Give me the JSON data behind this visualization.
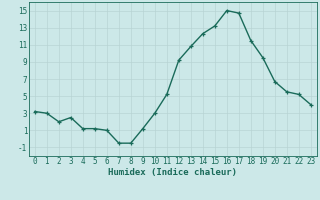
{
  "x": [
    0,
    1,
    2,
    3,
    4,
    5,
    6,
    7,
    8,
    9,
    10,
    11,
    12,
    13,
    14,
    15,
    16,
    17,
    18,
    19,
    20,
    21,
    22,
    23
  ],
  "y": [
    3.2,
    3.0,
    2.0,
    2.5,
    1.2,
    1.2,
    1.0,
    -0.5,
    -0.5,
    1.2,
    3.0,
    5.2,
    9.2,
    10.8,
    12.3,
    13.2,
    15.0,
    14.7,
    11.5,
    9.5,
    6.7,
    5.5,
    5.2,
    4.0
  ],
  "line_color": "#1a6b5a",
  "marker": "+",
  "marker_size": 3,
  "bg_color": "#cce8e8",
  "grid_color_major": "#b8d4d4",
  "grid_color_minor": "#d4e8e8",
  "xlabel": "Humidex (Indice chaleur)",
  "xlim": [
    -0.5,
    23.5
  ],
  "ylim": [
    -2,
    16
  ],
  "yticks": [
    -1,
    1,
    3,
    5,
    7,
    9,
    11,
    13,
    15
  ],
  "xticks": [
    0,
    1,
    2,
    3,
    4,
    5,
    6,
    7,
    8,
    9,
    10,
    11,
    12,
    13,
    14,
    15,
    16,
    17,
    18,
    19,
    20,
    21,
    22,
    23
  ],
  "linewidth": 1.0,
  "tick_fontsize": 5.5,
  "xlabel_fontsize": 6.5
}
